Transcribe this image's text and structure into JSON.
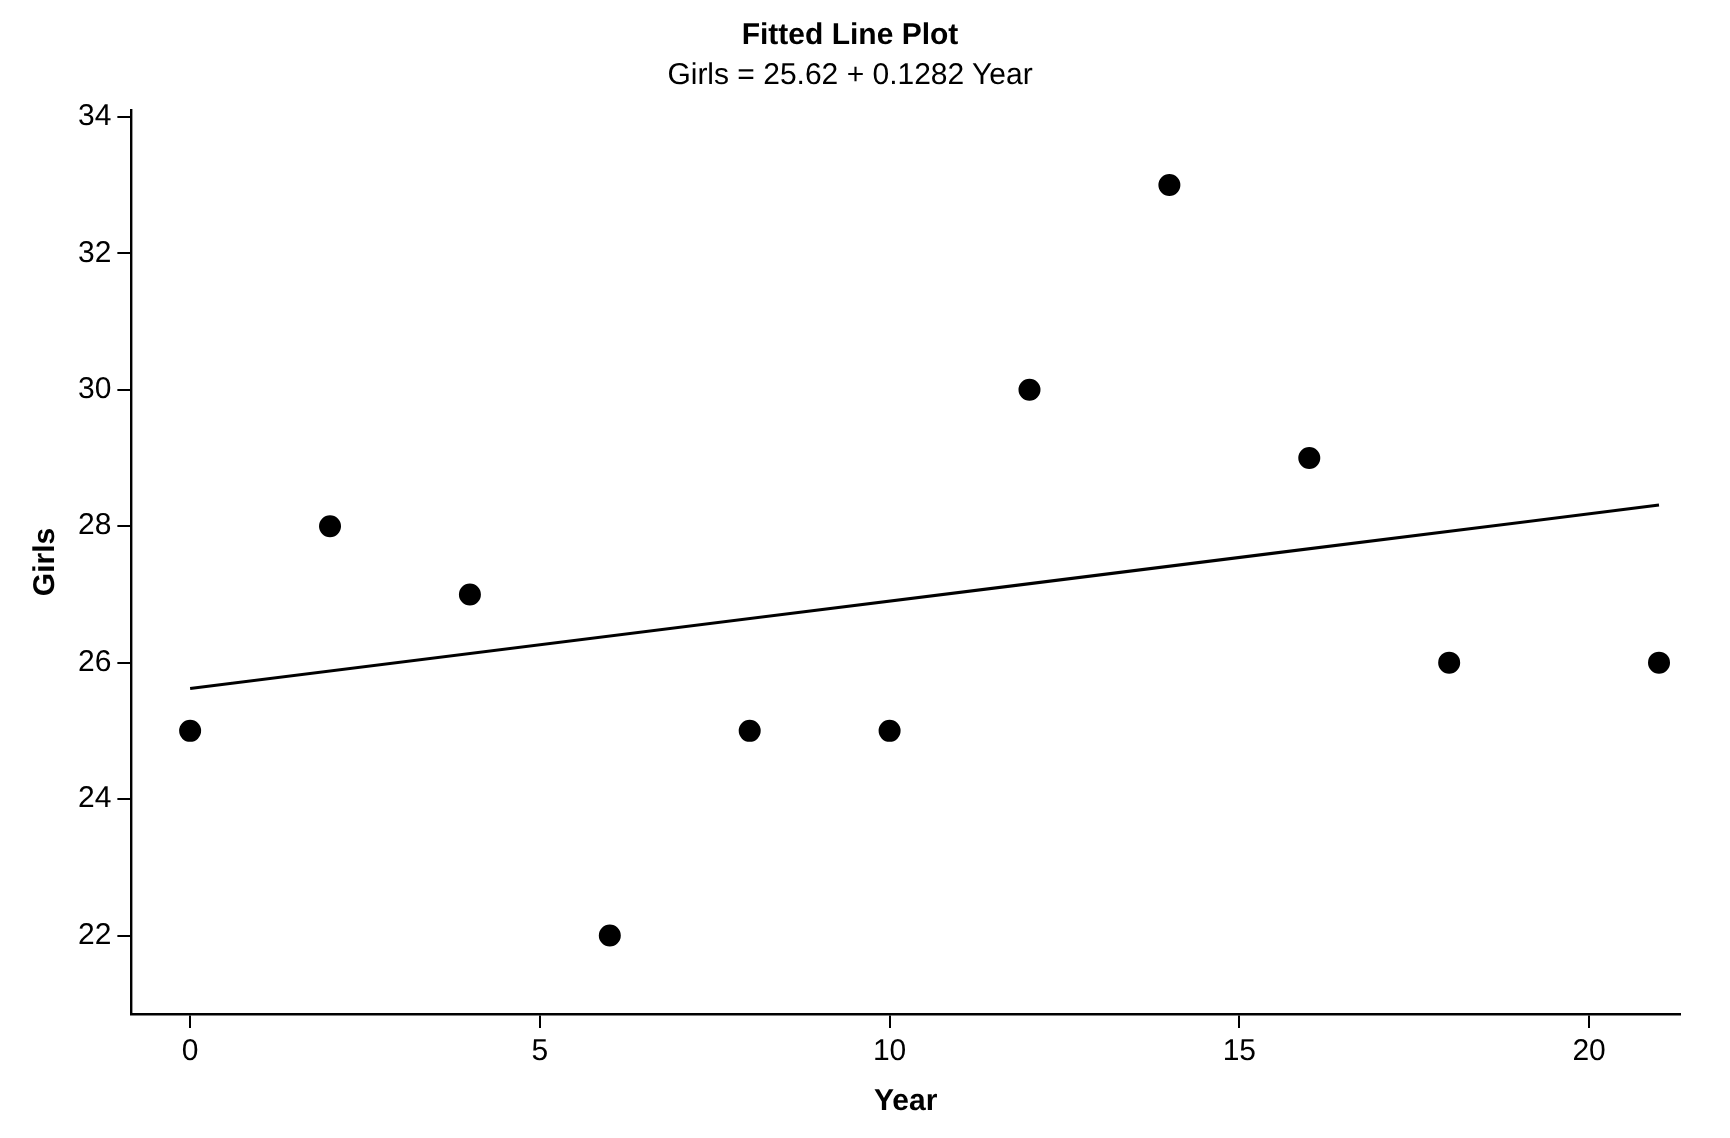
{
  "chart_data": {
    "type": "scatter",
    "title": "Fitted Line Plot",
    "subtitle": "Girls = 25.62 + 0.1282 Year",
    "xlabel": "Year",
    "ylabel": "Girls",
    "marker": "circle",
    "legend": false,
    "xlim": [
      -0.84,
      21.3
    ],
    "xticks": [
      0,
      5,
      10,
      15,
      20
    ],
    "ylim": [
      20.85,
      34.1
    ],
    "yticks": [
      22,
      24,
      26,
      28,
      30,
      32,
      34
    ],
    "series": [
      {
        "type": "scatter",
        "color": "#000000",
        "x": [
          0,
          2,
          4,
          6,
          8,
          10,
          12,
          14,
          16,
          18,
          21
        ],
        "values": [
          25,
          28,
          27,
          22,
          25,
          25,
          30,
          33,
          29,
          26,
          26
        ]
      },
      {
        "type": "line",
        "color": "#000000",
        "line_style": "solid",
        "marker": "none",
        "x": [
          0,
          21
        ],
        "values": [
          25.62,
          28.31
        ]
      }
    ]
  }
}
